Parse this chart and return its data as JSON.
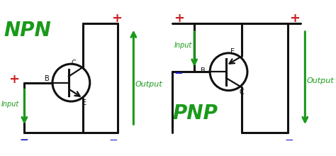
{
  "bg_color": "#ffffff",
  "line_color": "#111111",
  "green": "#1a9a1a",
  "red": "#cc2222",
  "blue": "#2222cc",
  "npn_label": "NPN",
  "pnp_label": "PNP",
  "output_label": "Output",
  "input_label": "Input",
  "fig_width": 4.74,
  "fig_height": 2.2,
  "dpi": 100
}
